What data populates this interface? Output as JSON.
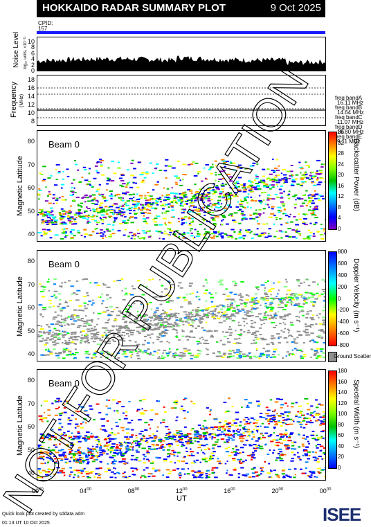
{
  "header": {
    "title": "HOKKAIDO RADAR SUMMARY PLOT",
    "date": "9 Oct 2025"
  },
  "cpid": {
    "label": "CPID:",
    "value": "157"
  },
  "noise_panel": {
    "ylabel": "Noise Level",
    "sub": "log₁₀ units, ×10⁻¹¹",
    "ticks": [
      "10",
      "8",
      "6",
      "4",
      "2",
      "0"
    ]
  },
  "freq_panel": {
    "ylabel": "Frequency",
    "unit": "(MHz)",
    "ticks": [
      "18",
      "16",
      "14",
      "12",
      "10",
      "8"
    ],
    "bands": [
      {
        "label": "freq bandA",
        "value": "16.11 MHz"
      },
      {
        "label": "freq bandB",
        "value": "14.64 MHz"
      },
      {
        "label": "freq bandC",
        "value": "11.07 MHz"
      },
      {
        "label": "freq bandD",
        "value": "10.80 MHz"
      },
      {
        "label": "freq bandE",
        "value": "9.11 MHz"
      }
    ]
  },
  "panels": [
    {
      "beam": "Beam 0",
      "ylabel": "Magnetic Latitude",
      "cbar_label": "Backscatter Power (dB)",
      "cbar_ticks": [
        "36",
        "32",
        "28",
        "24",
        "20",
        "16",
        "12",
        "8",
        "4",
        "0"
      ]
    },
    {
      "beam": "Beam 0",
      "ylabel": "Magnetic Latitude",
      "cbar_label": "Doppler Velocity (m s⁻¹)",
      "cbar_ticks": [
        "800",
        "600",
        "400",
        "200",
        "0",
        "-200",
        "-400",
        "-600",
        "-800"
      ],
      "ground": "Ground Scatter"
    },
    {
      "beam": "Beam 0",
      "ylabel": "Magnetic Latitude",
      "cbar_label": "Spectral Width (m s⁻¹)",
      "cbar_ticks": [
        "180",
        "160",
        "140",
        "120",
        "100",
        "80",
        "60",
        "40",
        "20",
        "0"
      ]
    }
  ],
  "lat_ticks": [
    "80",
    "70",
    "60",
    "50",
    "40"
  ],
  "x_axis": {
    "label": "UT",
    "ticks": [
      "00",
      "04",
      "08",
      "12",
      "16",
      "20",
      "00"
    ]
  },
  "footer": {
    "credit": "Quick look plot created by sddata adm",
    "time": "01:13 UT 10 Oct 2025"
  },
  "logo": {
    "text": "ISEE"
  },
  "watermark": "NOT FOR PUBLICATION",
  "chart_data": {
    "type": "heatmap",
    "title": "HOKKAIDO RADAR SUMMARY PLOT",
    "x_label": "UT",
    "x_range_hours": [
      0,
      24
    ],
    "y_label": "Magnetic Latitude",
    "y_range": [
      37,
      85
    ],
    "panels": [
      "Backscatter Power (dB)",
      "Doppler Velocity (m s⁻¹)",
      "Spectral Width (m s⁻¹)"
    ],
    "power_range_db": [
      0,
      36
    ],
    "velocity_range_ms": [
      -800,
      800
    ],
    "width_range_ms": [
      0,
      180
    ],
    "frequency_bands_mhz": [
      16.11,
      14.64,
      11.07,
      10.8,
      9.11
    ]
  }
}
